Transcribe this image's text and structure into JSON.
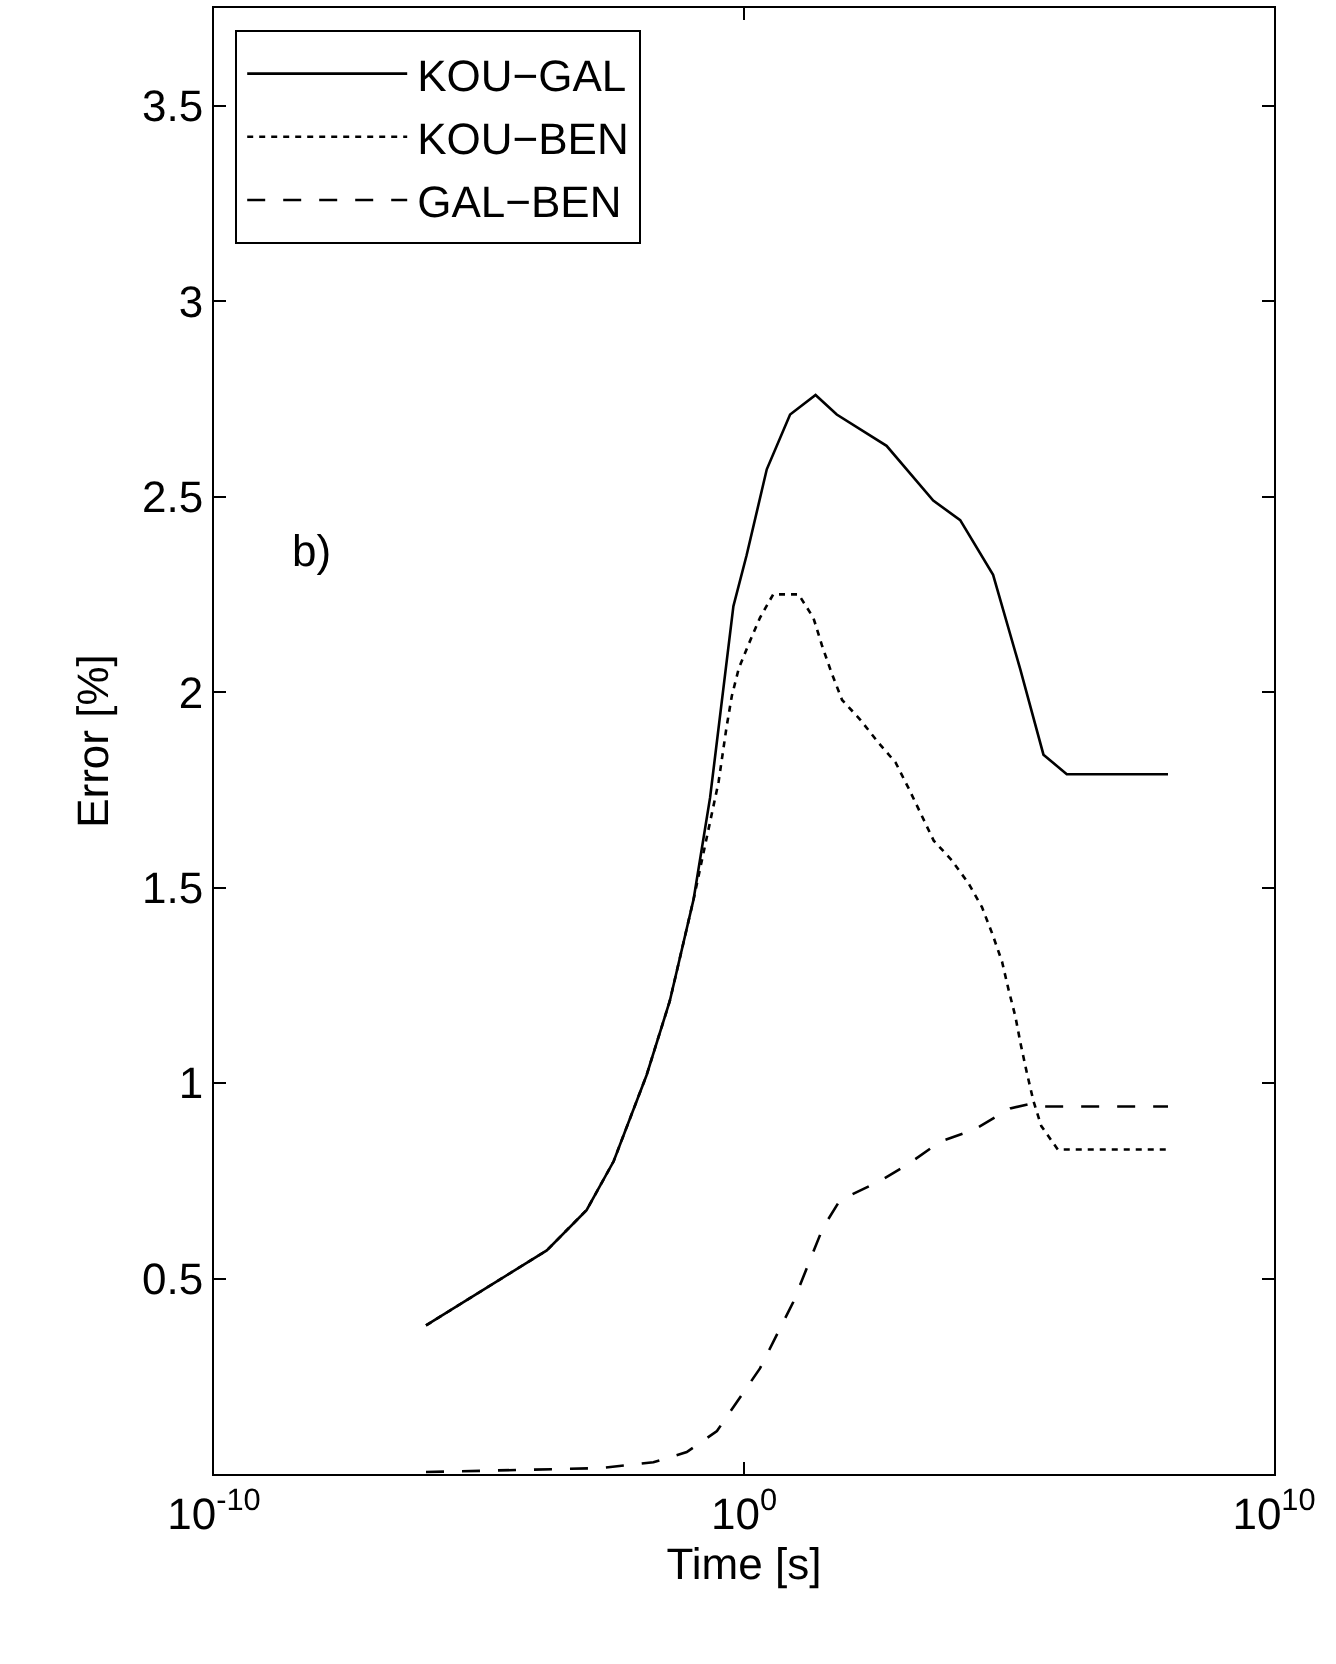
{
  "chart_data": {
    "type": "line",
    "xlabel": "Time [s]",
    "ylabel": "Error [%]",
    "log": "x",
    "xlim": [
      1e-10,
      10000000000.0
    ],
    "xticks": [
      {
        "value": 1e-10,
        "label": "10$^{-10}$"
      },
      {
        "value": 1,
        "label": "10$^{0}$"
      },
      {
        "value": 10000000000.0,
        "label": "10$^{10}$"
      }
    ],
    "ylim": [
      0,
      3.75
    ],
    "yticks": [
      0.5,
      1,
      1.5,
      2,
      2.5,
      3,
      3.5
    ],
    "legend": "top left",
    "annotations": [
      "b)"
    ],
    "series": [
      {
        "name": "KOU−GAL",
        "color": "#000000",
        "line_style": "solid",
        "x": [
          1e-06,
          1.86e-05,
          0.00019,
          0.00107,
          0.00347,
          0.0145,
          0.0398,
          0.112,
          0.229,
          0.631,
          1.12,
          2.69,
          7.41,
          22.4,
          56.2,
          490,
          3720,
          12000,
          50100,
          162000,
          447000,
          1230000,
          100000000.0
        ],
        "values": [
          0.38,
          0.487,
          0.572,
          0.675,
          0.8,
          1.02,
          1.21,
          1.47,
          1.73,
          2.22,
          2.35,
          2.57,
          2.71,
          2.76,
          2.71,
          2.63,
          2.49,
          2.44,
          2.3,
          2.06,
          1.84,
          1.79,
          1.79
        ]
      },
      {
        "name": "KOU−BEN",
        "color": "#000000",
        "line_style": "dotted",
        "x": [
          1e-06,
          1.86e-05,
          0.00019,
          0.00107,
          0.00347,
          0.0145,
          0.0398,
          0.112,
          0.331,
          0.468,
          0.589,
          0.794,
          1.2,
          2.0,
          3.55,
          10.7,
          20.4,
          29.5,
          44.7,
          70.8,
          155,
          347,
          724,
          1320,
          3800,
          8320,
          17400,
          30900,
          49000,
          74100,
          97700,
          132000,
          166000,
          214000,
          288000,
          407000,
          832000,
          100000000.0
        ],
        "values": [
          0.38,
          0.487,
          0.572,
          0.675,
          0.8,
          1.02,
          1.21,
          1.47,
          1.77,
          1.91,
          1.99,
          2.06,
          2.12,
          2.19,
          2.25,
          2.25,
          2.19,
          2.12,
          2.05,
          1.98,
          1.93,
          1.87,
          1.82,
          1.75,
          1.62,
          1.57,
          1.51,
          1.45,
          1.38,
          1.31,
          1.24,
          1.17,
          1.1,
          1.03,
          0.955,
          0.89,
          0.83,
          0.83
        ]
      },
      {
        "name": "GAL−BEN",
        "color": "#000000",
        "line_style": "dashed",
        "x": [
          1e-06,
          0.0019,
          0.0195,
          0.0832,
          0.309,
          2.0,
          8.51,
          30.9,
          64.6,
          372,
          1170,
          5010,
          21400,
          105000,
          251000,
          447000,
          100000000.0
        ],
        "values": [
          0.005,
          0.015,
          0.03,
          0.056,
          0.11,
          0.27,
          0.44,
          0.63,
          0.7,
          0.75,
          0.79,
          0.85,
          0.88,
          0.935,
          0.947,
          0.94,
          0.94
        ]
      }
    ]
  }
}
